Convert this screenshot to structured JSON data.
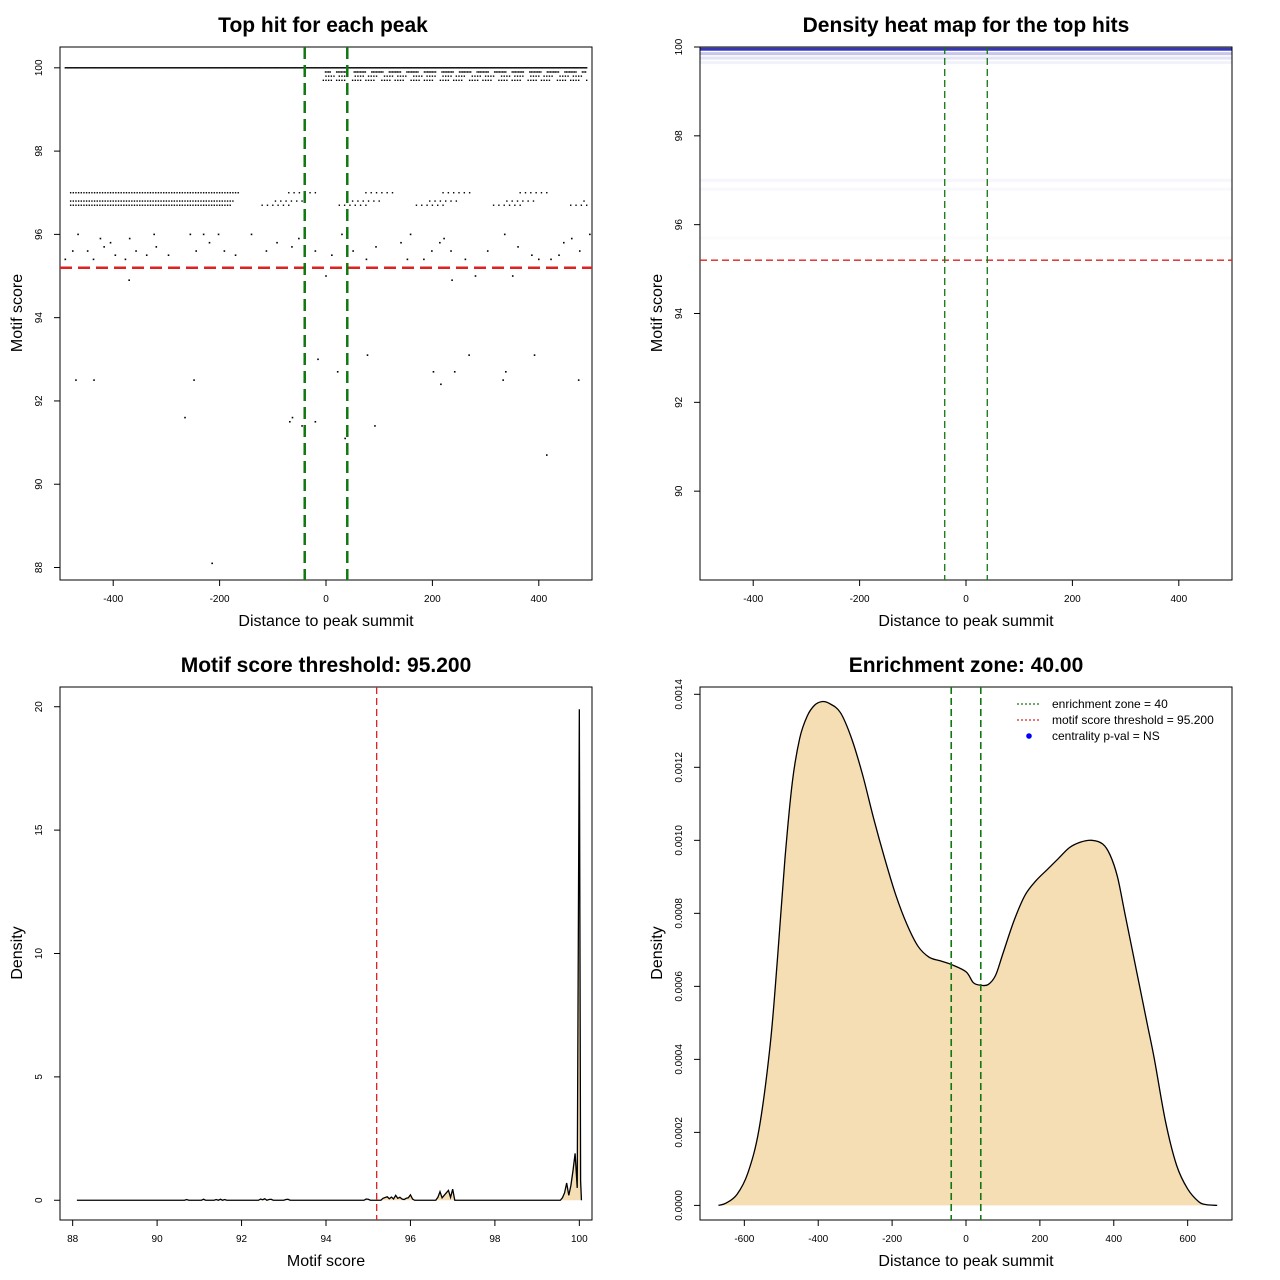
{
  "chart_data": [
    {
      "type": "scatter",
      "title": "Top hit for each peak",
      "xlabel": "Distance to peak summit",
      "ylabel": "Motif score",
      "xlim": [
        -500,
        500
      ],
      "ylim": [
        87.7,
        100.5
      ],
      "xticks": [
        -400,
        -200,
        0,
        200,
        400
      ],
      "yticks": [
        88,
        90,
        92,
        94,
        96,
        98,
        100
      ],
      "enrichment_zone": [
        -40,
        40
      ],
      "threshold": 95.2,
      "dense_rows": [
        100.0,
        99.9,
        99.8,
        99.7
      ],
      "dense_range": [
        -490,
        490
      ],
      "band_rows": [
        97.0,
        96.8,
        96.7
      ],
      "band_range": [
        -480,
        490
      ],
      "points": [
        [
          -490,
          95.4
        ],
        [
          -476,
          95.6
        ],
        [
          -466,
          96.0
        ],
        [
          -448,
          95.6
        ],
        [
          -437,
          95.4
        ],
        [
          -424,
          95.9
        ],
        [
          -417,
          95.7
        ],
        [
          -405,
          95.8
        ],
        [
          -396,
          95.5
        ],
        [
          -377,
          95.4
        ],
        [
          -369,
          95.9
        ],
        [
          -357,
          95.6
        ],
        [
          -337,
          95.5
        ],
        [
          -323,
          96.0
        ],
        [
          -319,
          95.7
        ],
        [
          -296,
          95.5
        ],
        [
          -255,
          96.0
        ],
        [
          -244,
          95.6
        ],
        [
          -230,
          96.0
        ],
        [
          -219,
          95.8
        ],
        [
          -202,
          96.0
        ],
        [
          -191,
          95.6
        ],
        [
          -170,
          95.5
        ],
        [
          -140,
          96.0
        ],
        [
          -112,
          95.6
        ],
        [
          -92,
          95.8
        ],
        [
          -64,
          95.7
        ],
        [
          -51,
          95.9
        ],
        [
          -20,
          95.6
        ],
        [
          11,
          95.5
        ],
        [
          30,
          96.0
        ],
        [
          51,
          95.6
        ],
        [
          76,
          95.4
        ],
        [
          94,
          95.7
        ],
        [
          141,
          95.8
        ],
        [
          153,
          95.4
        ],
        [
          159,
          96.0
        ],
        [
          184,
          95.4
        ],
        [
          199,
          95.6
        ],
        [
          214,
          95.8
        ],
        [
          222,
          95.9
        ],
        [
          235,
          95.6
        ],
        [
          262,
          95.4
        ],
        [
          304,
          95.6
        ],
        [
          336,
          96.0
        ],
        [
          361,
          95.7
        ],
        [
          387,
          95.5
        ],
        [
          400,
          95.4
        ],
        [
          423,
          95.4
        ],
        [
          438,
          95.5
        ],
        [
          447,
          95.8
        ],
        [
          462,
          95.9
        ],
        [
          477,
          95.6
        ],
        [
          496,
          96.0
        ],
        [
          -370,
          94.9
        ],
        [
          237,
          94.9
        ],
        [
          281,
          95.0
        ],
        [
          351,
          95.0
        ],
        [
          0,
          95.0
        ],
        [
          -470,
          92.5
        ],
        [
          -436,
          92.5
        ],
        [
          -248,
          92.5
        ],
        [
          -68,
          91.5
        ],
        [
          -63,
          91.6
        ],
        [
          -45,
          91.4
        ],
        [
          -20,
          91.5
        ],
        [
          -15,
          93.0
        ],
        [
          22,
          92.7
        ],
        [
          36,
          91.1
        ],
        [
          78,
          93.1
        ],
        [
          92,
          91.4
        ],
        [
          202,
          92.7
        ],
        [
          216,
          92.4
        ],
        [
          242,
          92.7
        ],
        [
          269,
          93.1
        ],
        [
          333,
          92.5
        ],
        [
          338,
          92.7
        ],
        [
          392,
          93.1
        ],
        [
          415,
          90.7
        ],
        [
          475,
          92.5
        ],
        [
          -265,
          91.6
        ],
        [
          -214,
          88.1
        ]
      ]
    },
    {
      "type": "heatmap",
      "title": "Density heat map for the top hits",
      "xlabel": "Distance to peak summit",
      "ylabel": "Motif score",
      "xlim": [
        -500,
        500
      ],
      "ylim": [
        88,
        100
      ],
      "xticks": [
        -400,
        -200,
        0,
        200,
        400
      ],
      "yticks": [
        90,
        92,
        94,
        96,
        98,
        100
      ],
      "enrichment_zone": [
        -40,
        40
      ],
      "threshold": 95.2,
      "colors": {
        "high": "#2020b0",
        "low": "#ffffff"
      },
      "bands": [
        {
          "y": 99.95,
          "intensity": 0.9
        },
        {
          "y": 99.85,
          "intensity": 0.25
        },
        {
          "y": 99.75,
          "intensity": 0.12
        },
        {
          "y": 99.65,
          "intensity": 0.06
        },
        {
          "y": 97.0,
          "intensity": 0.04
        },
        {
          "y": 96.8,
          "intensity": 0.03
        },
        {
          "y": 95.7,
          "intensity": 0.02
        }
      ]
    },
    {
      "type": "area",
      "title": "Motif score threshold: 95.200",
      "xlabel": "Motif score",
      "ylabel": "Density",
      "xlim": [
        87.7,
        100.3
      ],
      "ylim": [
        -0.8,
        20.8
      ],
      "xticks": [
        88,
        90,
        92,
        94,
        96,
        98,
        100
      ],
      "yticks": [
        0,
        5,
        10,
        15,
        20
      ],
      "threshold": 95.2,
      "x": [
        88.1,
        90.65,
        90.7,
        90.75,
        91.05,
        91.1,
        91.15,
        91.35,
        91.4,
        91.45,
        91.5,
        91.55,
        91.6,
        91.65,
        92.4,
        92.45,
        92.5,
        92.55,
        92.6,
        92.65,
        92.7,
        92.75,
        93.0,
        93.05,
        93.1,
        93.15,
        94.9,
        94.95,
        95.0,
        95.05,
        95.3,
        95.35,
        95.45,
        95.5,
        95.55,
        95.6,
        95.65,
        95.7,
        95.75,
        95.8,
        95.85,
        95.9,
        95.95,
        96.0,
        96.05,
        96.1,
        96.6,
        96.65,
        96.7,
        96.75,
        96.8,
        96.85,
        96.9,
        96.95,
        97.0,
        97.05,
        99.55,
        99.6,
        99.65,
        99.7,
        99.75,
        99.8,
        99.85,
        99.9,
        99.95,
        100.0,
        100.03,
        100.05
      ],
      "y": [
        0,
        0,
        0.03,
        0,
        0,
        0.04,
        0,
        0,
        0.03,
        0,
        0.04,
        0,
        0.03,
        0,
        0,
        0.05,
        0.02,
        0.06,
        0,
        0.03,
        0.04,
        0,
        0,
        0.03,
        0.04,
        0,
        0,
        0.05,
        0.04,
        0,
        0,
        0.08,
        0.14,
        0.06,
        0.13,
        0.05,
        0.2,
        0.08,
        0.12,
        0.05,
        0.03,
        0.08,
        0.1,
        0.22,
        0.05,
        0,
        0,
        0.12,
        0.35,
        0.1,
        0.2,
        0.3,
        0.4,
        0.12,
        0.45,
        0,
        0,
        0.1,
        0.3,
        0.7,
        0.2,
        0.6,
        1.2,
        1.9,
        0.5,
        19.9,
        0.8,
        0
      ]
    },
    {
      "type": "area",
      "title": "Enrichment zone: 40.00",
      "xlabel": "Distance to peak summit",
      "ylabel": "Density",
      "xlim": [
        -720,
        720
      ],
      "ylim": [
        -4e-05,
        0.00142
      ],
      "xticks": [
        -600,
        -400,
        -200,
        0,
        200,
        400,
        600
      ],
      "yticks": [
        0,
        0.0002,
        0.0004,
        0.0006,
        0.0008,
        0.001,
        0.0012,
        0.0014
      ],
      "ytick_labels": [
        "0.0000",
        "0.0002",
        "0.0004",
        "0.0006",
        "0.0008",
        "0.0010",
        "0.0012",
        "0.0014"
      ],
      "enrichment_zone": [
        -40,
        40
      ],
      "fill": "#f5deb3",
      "x": [
        -670,
        -650,
        -620,
        -590,
        -560,
        -530,
        -510,
        -490,
        -470,
        -450,
        -430,
        -410,
        -390,
        -370,
        -340,
        -310,
        -280,
        -250,
        -220,
        -190,
        -160,
        -130,
        -100,
        -70,
        -40,
        0,
        20,
        40,
        60,
        80,
        100,
        130,
        160,
        190,
        220,
        250,
        280,
        310,
        340,
        370,
        390,
        410,
        430,
        460,
        490,
        510,
        540,
        570,
        600,
        630,
        650,
        680
      ],
      "y": [
        0.0,
        6e-06,
        3e-05,
        9e-05,
        0.00021,
        0.00044,
        0.00068,
        0.00095,
        0.00116,
        0.00128,
        0.00134,
        0.00137,
        0.00138,
        0.001375,
        0.00135,
        0.00128,
        0.00118,
        0.00106,
        0.00095,
        0.00085,
        0.00077,
        0.00071,
        0.00068,
        0.00067,
        0.00066,
        0.00064,
        0.00061,
        0.000603,
        0.000605,
        0.00063,
        0.00069,
        0.00078,
        0.00085,
        0.00089,
        0.00092,
        0.00095,
        0.00098,
        0.000995,
        0.001,
        0.00099,
        0.00096,
        0.0009,
        0.0008,
        0.00065,
        0.0005,
        0.0004,
        0.00023,
        0.00011,
        4.5e-05,
        1e-05,
        2e-06,
        0.0
      ],
      "legend": [
        {
          "label": "enrichment zone = 40",
          "color": "#1a7a1a",
          "style": "dotted-line"
        },
        {
          "label": "motif score threshold = 95.200",
          "color": "#e02020",
          "style": "dotted-line"
        },
        {
          "label": "centrality p-val = NS",
          "color": "#0000ff",
          "style": "dot"
        }
      ]
    }
  ]
}
